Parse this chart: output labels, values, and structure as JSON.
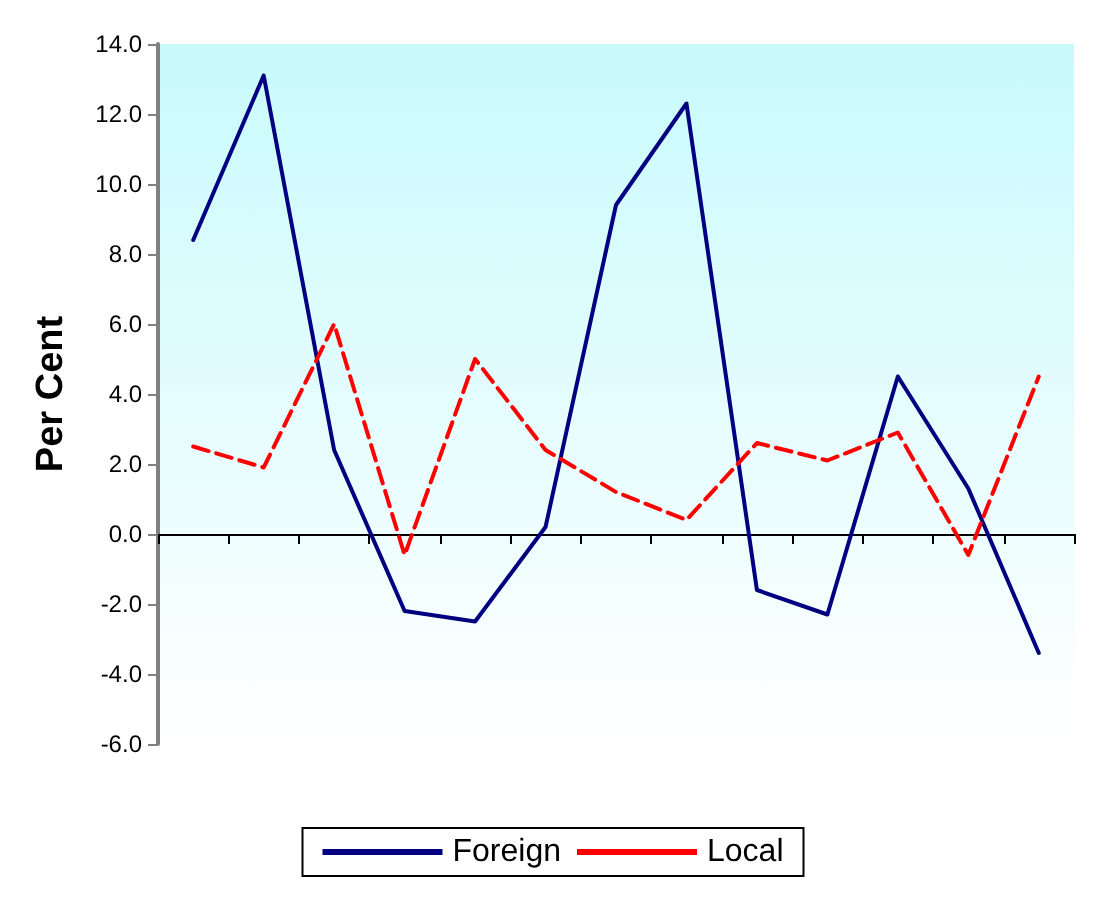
{
  "chart_data": {
    "type": "line",
    "ylabel": "Per Cent",
    "categories": [
      null,
      null,
      null,
      null,
      null,
      null,
      null,
      null,
      null,
      null,
      null,
      null,
      null
    ],
    "series": [
      {
        "name": "Foreign",
        "color": "#000080",
        "line_style": "solid",
        "values": [
          8.4,
          13.1,
          2.4,
          -2.2,
          -2.5,
          0.2,
          9.4,
          12.3,
          -1.6,
          -2.3,
          4.5,
          1.3,
          -3.4
        ]
      },
      {
        "name": "Local",
        "color": "#ff0000",
        "line_style": "dashed",
        "values": [
          2.5,
          1.9,
          6.0,
          -0.6,
          5.0,
          2.4,
          1.2,
          0.4,
          2.6,
          2.1,
          2.9,
          -0.6,
          4.5
        ]
      }
    ],
    "ylim": [
      -6,
      14
    ],
    "yticks": [
      {
        "value": -6,
        "label": "-6.0"
      },
      {
        "value": -4,
        "label": "-4.0"
      },
      {
        "value": -2,
        "label": "-2.0"
      },
      {
        "value": 0,
        "label": "0.0"
      },
      {
        "value": 2,
        "label": "2.0"
      },
      {
        "value": 4,
        "label": "4.0"
      },
      {
        "value": 6,
        "label": "6.0"
      },
      {
        "value": 8,
        "label": "8.0"
      },
      {
        "value": 10,
        "label": "10.0"
      },
      {
        "value": 12,
        "label": "12.0"
      },
      {
        "value": 14,
        "label": "14.0"
      }
    ],
    "legend": "bottom",
    "marker": "none"
  }
}
